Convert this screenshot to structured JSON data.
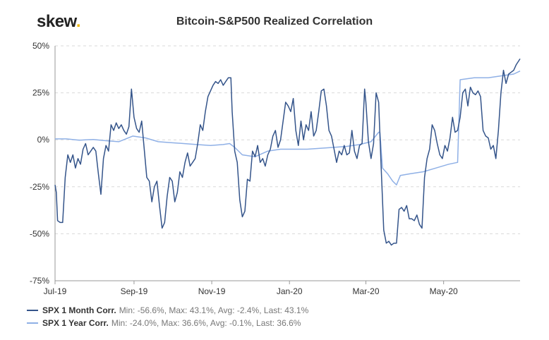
{
  "logo": {
    "text": "skew",
    "dot": "."
  },
  "chart_data": {
    "type": "line",
    "title": "Bitcoin-S&P500 Realized Correlation",
    "xlabel": "",
    "ylabel": "",
    "xlim": [
      "2019-07-01",
      "2020-06-30"
    ],
    "ylim": [
      -75,
      50
    ],
    "yticks": [
      -75,
      -50,
      -25,
      0,
      25,
      50
    ],
    "ytick_labels": [
      "-75%",
      "-50%",
      "-25%",
      "0%",
      "25%",
      "50%"
    ],
    "xticks": [
      {
        "date": "2019-07-01",
        "label": "Jul-19"
      },
      {
        "date": "2019-09-01",
        "label": "Sep-19"
      },
      {
        "date": "2019-11-01",
        "label": "Nov-19"
      },
      {
        "date": "2020-01-01",
        "label": "Jan-20"
      },
      {
        "date": "2020-03-01",
        "label": "Mar-20"
      },
      {
        "date": "2020-05-01",
        "label": "May-20"
      }
    ],
    "grid": "horizontal dashed",
    "legend_position": "bottom-left",
    "series": [
      {
        "name": "SPX 1 Month Corr.",
        "stats": "Min: -56.6%, Max: 43.1%, Avg: -2.4%, Last: 43.1%",
        "color": "#34548a",
        "points": [
          [
            "2019-07-01",
            -24
          ],
          [
            "2019-07-02",
            -28
          ],
          [
            "2019-07-03",
            -43
          ],
          [
            "2019-07-05",
            -44
          ],
          [
            "2019-07-07",
            -44
          ],
          [
            "2019-07-09",
            -20
          ],
          [
            "2019-07-11",
            -8
          ],
          [
            "2019-07-13",
            -12
          ],
          [
            "2019-07-15",
            -8
          ],
          [
            "2019-07-17",
            -15
          ],
          [
            "2019-07-19",
            -10
          ],
          [
            "2019-07-21",
            -13
          ],
          [
            "2019-07-23",
            -5
          ],
          [
            "2019-07-25",
            -2
          ],
          [
            "2019-07-27",
            -8
          ],
          [
            "2019-07-29",
            -6
          ],
          [
            "2019-07-31",
            -4
          ],
          [
            "2019-08-02",
            -6
          ],
          [
            "2019-08-04",
            -18
          ],
          [
            "2019-08-06",
            -29
          ],
          [
            "2019-08-08",
            -10
          ],
          [
            "2019-08-10",
            -3
          ],
          [
            "2019-08-12",
            -6
          ],
          [
            "2019-08-14",
            8
          ],
          [
            "2019-08-16",
            5
          ],
          [
            "2019-08-18",
            9
          ],
          [
            "2019-08-20",
            6
          ],
          [
            "2019-08-22",
            8
          ],
          [
            "2019-08-24",
            5
          ],
          [
            "2019-08-26",
            3
          ],
          [
            "2019-08-28",
            7
          ],
          [
            "2019-08-30",
            27
          ],
          [
            "2019-09-01",
            12
          ],
          [
            "2019-09-03",
            6
          ],
          [
            "2019-09-05",
            4
          ],
          [
            "2019-09-07",
            10
          ],
          [
            "2019-09-09",
            -5
          ],
          [
            "2019-09-11",
            -20
          ],
          [
            "2019-09-13",
            -22
          ],
          [
            "2019-09-15",
            -33
          ],
          [
            "2019-09-17",
            -25
          ],
          [
            "2019-09-19",
            -22
          ],
          [
            "2019-09-21",
            -35
          ],
          [
            "2019-09-23",
            -47
          ],
          [
            "2019-09-25",
            -44
          ],
          [
            "2019-09-27",
            -30
          ],
          [
            "2019-09-29",
            -20
          ],
          [
            "2019-10-01",
            -22
          ],
          [
            "2019-10-03",
            -33
          ],
          [
            "2019-10-05",
            -28
          ],
          [
            "2019-10-07",
            -17
          ],
          [
            "2019-10-09",
            -20
          ],
          [
            "2019-10-11",
            -12
          ],
          [
            "2019-10-13",
            -7
          ],
          [
            "2019-10-15",
            -14
          ],
          [
            "2019-10-17",
            -12
          ],
          [
            "2019-10-19",
            -10
          ],
          [
            "2019-10-21",
            -2
          ],
          [
            "2019-10-23",
            8
          ],
          [
            "2019-10-25",
            5
          ],
          [
            "2019-10-27",
            15
          ],
          [
            "2019-10-29",
            23
          ],
          [
            "2019-10-31",
            26
          ],
          [
            "2019-11-02",
            29
          ],
          [
            "2019-11-04",
            31
          ],
          [
            "2019-11-06",
            30
          ],
          [
            "2019-11-08",
            32
          ],
          [
            "2019-11-10",
            29
          ],
          [
            "2019-11-12",
            31
          ],
          [
            "2019-11-14",
            33
          ],
          [
            "2019-11-16",
            33
          ],
          [
            "2019-11-17",
            15
          ],
          [
            "2019-11-19",
            -6
          ],
          [
            "2019-11-21",
            -12
          ],
          [
            "2019-11-23",
            -32
          ],
          [
            "2019-11-25",
            -41
          ],
          [
            "2019-11-27",
            -38
          ],
          [
            "2019-11-29",
            -21
          ],
          [
            "2019-12-01",
            -22
          ],
          [
            "2019-12-03",
            -6
          ],
          [
            "2019-12-05",
            -9
          ],
          [
            "2019-12-07",
            -3
          ],
          [
            "2019-12-09",
            -12
          ],
          [
            "2019-12-11",
            -10
          ],
          [
            "2019-12-13",
            -14
          ],
          [
            "2019-12-15",
            -8
          ],
          [
            "2019-12-17",
            -5
          ],
          [
            "2019-12-19",
            2
          ],
          [
            "2019-12-21",
            5
          ],
          [
            "2019-12-23",
            -4
          ],
          [
            "2019-12-25",
            0
          ],
          [
            "2019-12-27",
            10
          ],
          [
            "2019-12-29",
            20
          ],
          [
            "2019-12-31",
            18
          ],
          [
            "2020-01-02",
            15
          ],
          [
            "2020-01-04",
            22
          ],
          [
            "2020-01-06",
            5
          ],
          [
            "2020-01-08",
            -3
          ],
          [
            "2020-01-10",
            10
          ],
          [
            "2020-01-12",
            0
          ],
          [
            "2020-01-14",
            8
          ],
          [
            "2020-01-16",
            5
          ],
          [
            "2020-01-18",
            15
          ],
          [
            "2020-01-20",
            2
          ],
          [
            "2020-01-22",
            5
          ],
          [
            "2020-01-24",
            15
          ],
          [
            "2020-01-26",
            26
          ],
          [
            "2020-01-28",
            27
          ],
          [
            "2020-01-30",
            18
          ],
          [
            "2020-02-01",
            5
          ],
          [
            "2020-02-03",
            2
          ],
          [
            "2020-02-05",
            -5
          ],
          [
            "2020-02-07",
            -12
          ],
          [
            "2020-02-09",
            -6
          ],
          [
            "2020-02-11",
            -8
          ],
          [
            "2020-02-13",
            -3
          ],
          [
            "2020-02-15",
            -8
          ],
          [
            "2020-02-17",
            -7
          ],
          [
            "2020-02-19",
            5
          ],
          [
            "2020-02-21",
            -6
          ],
          [
            "2020-02-23",
            -10
          ],
          [
            "2020-02-25",
            -3
          ],
          [
            "2020-02-27",
            -2
          ],
          [
            "2020-02-29",
            27
          ],
          [
            "2020-03-01",
            20
          ],
          [
            "2020-03-03",
            -1
          ],
          [
            "2020-03-05",
            -10
          ],
          [
            "2020-03-07",
            -2
          ],
          [
            "2020-03-09",
            25
          ],
          [
            "2020-03-11",
            20
          ],
          [
            "2020-03-13",
            -15
          ],
          [
            "2020-03-15",
            -48
          ],
          [
            "2020-03-17",
            -55
          ],
          [
            "2020-03-19",
            -54
          ],
          [
            "2020-03-21",
            -56
          ],
          [
            "2020-03-23",
            -55
          ],
          [
            "2020-03-25",
            -55
          ],
          [
            "2020-03-27",
            -37
          ],
          [
            "2020-03-29",
            -36
          ],
          [
            "2020-03-31",
            -38
          ],
          [
            "2020-04-02",
            -35
          ],
          [
            "2020-04-04",
            -42
          ],
          [
            "2020-04-06",
            -42
          ],
          [
            "2020-04-08",
            -43
          ],
          [
            "2020-04-10",
            -40
          ],
          [
            "2020-04-12",
            -45
          ],
          [
            "2020-04-14",
            -47
          ],
          [
            "2020-04-16",
            -20
          ],
          [
            "2020-04-18",
            -10
          ],
          [
            "2020-04-20",
            -5
          ],
          [
            "2020-04-22",
            8
          ],
          [
            "2020-04-24",
            5
          ],
          [
            "2020-04-26",
            -2
          ],
          [
            "2020-04-28",
            -8
          ],
          [
            "2020-04-30",
            -10
          ],
          [
            "2020-05-02",
            -3
          ],
          [
            "2020-05-04",
            -6
          ],
          [
            "2020-05-06",
            1
          ],
          [
            "2020-05-08",
            12
          ],
          [
            "2020-05-10",
            4
          ],
          [
            "2020-05-12",
            5
          ],
          [
            "2020-05-14",
            12
          ],
          [
            "2020-05-16",
            25
          ],
          [
            "2020-05-18",
            27
          ],
          [
            "2020-05-20",
            18
          ],
          [
            "2020-05-22",
            28
          ],
          [
            "2020-05-24",
            25
          ],
          [
            "2020-05-26",
            24
          ],
          [
            "2020-05-28",
            26
          ],
          [
            "2020-05-30",
            23
          ],
          [
            "2020-06-01",
            5
          ],
          [
            "2020-06-03",
            2
          ],
          [
            "2020-06-05",
            1
          ],
          [
            "2020-06-07",
            -5
          ],
          [
            "2020-06-09",
            -3
          ],
          [
            "2020-06-11",
            -10
          ],
          [
            "2020-06-13",
            5
          ],
          [
            "2020-06-15",
            25
          ],
          [
            "2020-06-17",
            37
          ],
          [
            "2020-06-19",
            30
          ],
          [
            "2020-06-21",
            35
          ],
          [
            "2020-06-23",
            36
          ],
          [
            "2020-06-25",
            37
          ],
          [
            "2020-06-27",
            40
          ],
          [
            "2020-06-30",
            43.1
          ]
        ]
      },
      {
        "name": "SPX 1 Year Corr.",
        "stats": "Min: -24.0%, Max: 36.6%, Avg: -0.1%, Last: 36.6%",
        "color": "#8fb0e6",
        "points": [
          [
            "2019-07-01",
            0.5
          ],
          [
            "2019-07-10",
            0.5
          ],
          [
            "2019-07-20",
            -0.2
          ],
          [
            "2019-07-31",
            0.2
          ],
          [
            "2019-08-10",
            -0.5
          ],
          [
            "2019-08-20",
            -1
          ],
          [
            "2019-08-31",
            2
          ],
          [
            "2019-09-10",
            1
          ],
          [
            "2019-09-20",
            -1
          ],
          [
            "2019-09-30",
            -1.5
          ],
          [
            "2019-10-10",
            -2
          ],
          [
            "2019-10-20",
            -2.5
          ],
          [
            "2019-10-31",
            -3
          ],
          [
            "2019-11-10",
            -2.5
          ],
          [
            "2019-11-15",
            -2
          ],
          [
            "2019-11-19",
            -4
          ],
          [
            "2019-11-25",
            -8
          ],
          [
            "2019-12-05",
            -9
          ],
          [
            "2019-12-15",
            -6
          ],
          [
            "2019-12-25",
            -5
          ],
          [
            "2020-01-05",
            -5
          ],
          [
            "2020-01-15",
            -5
          ],
          [
            "2020-01-25",
            -4.5
          ],
          [
            "2020-02-05",
            -4
          ],
          [
            "2020-02-15",
            -3.5
          ],
          [
            "2020-02-25",
            -2.5
          ],
          [
            "2020-03-05",
            -1
          ],
          [
            "2020-03-11",
            4
          ],
          [
            "2020-03-12",
            4
          ],
          [
            "2020-03-14",
            -15
          ],
          [
            "2020-03-18",
            -18
          ],
          [
            "2020-03-22",
            -22
          ],
          [
            "2020-03-25",
            -24
          ],
          [
            "2020-03-28",
            -19
          ],
          [
            "2020-04-05",
            -18
          ],
          [
            "2020-04-15",
            -17
          ],
          [
            "2020-04-25",
            -15
          ],
          [
            "2020-05-05",
            -13
          ],
          [
            "2020-05-12",
            -12
          ],
          [
            "2020-05-14",
            32
          ],
          [
            "2020-05-25",
            33
          ],
          [
            "2020-06-05",
            33
          ],
          [
            "2020-06-15",
            34
          ],
          [
            "2020-06-25",
            35
          ],
          [
            "2020-06-30",
            36.6
          ]
        ]
      }
    ]
  }
}
